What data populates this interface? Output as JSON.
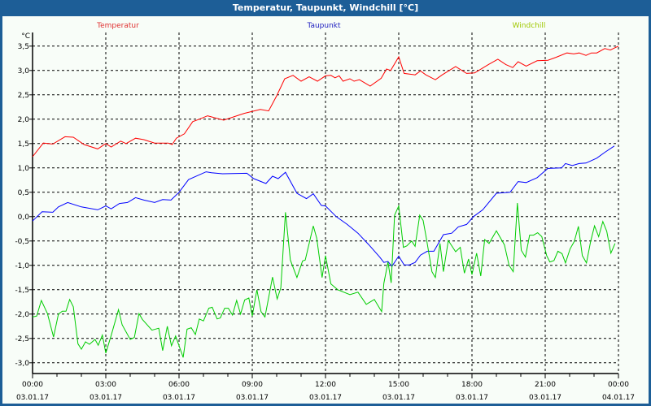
{
  "window": {
    "title": "Temperatur, Taupunkt, Windchill [°C]"
  },
  "chart_data": {
    "type": "line",
    "title": "Temperatur, Taupunkt, Windchill [°C]",
    "ylabel": "°C",
    "xlabel": "",
    "ylim": [
      -3.22,
      3.78
    ],
    "xlim": [
      0,
      24
    ],
    "grid": true,
    "legend_placement": "top",
    "y_ticks": [
      {
        "value": 3.5,
        "label": "3,5"
      },
      {
        "value": 3.0,
        "label": "3,0"
      },
      {
        "value": 2.5,
        "label": "2,5"
      },
      {
        "value": 2.0,
        "label": "2,0"
      },
      {
        "value": 1.5,
        "label": "1,5"
      },
      {
        "value": 1.0,
        "label": "1,0"
      },
      {
        "value": 0.5,
        "label": "0,5"
      },
      {
        "value": 0.0,
        "label": "0,0"
      },
      {
        "value": -0.5,
        "label": "-0,5"
      },
      {
        "value": -1.0,
        "label": "-1,0"
      },
      {
        "value": -1.5,
        "label": "-1,5"
      },
      {
        "value": -2.0,
        "label": "-2,0"
      },
      {
        "value": -2.5,
        "label": "-2,5"
      },
      {
        "value": -3.0,
        "label": "-3,0"
      }
    ],
    "x_ticks": [
      {
        "value": 0,
        "time": "00:00",
        "date": "03.01.17"
      },
      {
        "value": 3,
        "time": "03:00",
        "date": "03.01.17"
      },
      {
        "value": 6,
        "time": "06:00",
        "date": "03.01.17"
      },
      {
        "value": 9,
        "time": "09:00",
        "date": "03.01.17"
      },
      {
        "value": 12,
        "time": "12:00",
        "date": "03.01.17"
      },
      {
        "value": 15,
        "time": "15:00",
        "date": "03.01.17"
      },
      {
        "value": 18,
        "time": "18:00",
        "date": "03.01.17"
      },
      {
        "value": 21,
        "time": "21:00",
        "date": "03.01.17"
      },
      {
        "value": 24,
        "time": "00:00",
        "date": "04.01.17"
      }
    ],
    "series": [
      {
        "name": "Temperatur",
        "color": "#ff0000",
        "legend_color": "#e03030",
        "points": [
          [
            0,
            1.23
          ],
          [
            0.44,
            1.51
          ],
          [
            0.83,
            1.49
          ],
          [
            1.33,
            1.64
          ],
          [
            1.67,
            1.63
          ],
          [
            2.11,
            1.48
          ],
          [
            2.67,
            1.39
          ],
          [
            3,
            1.5
          ],
          [
            3.22,
            1.43
          ],
          [
            3.61,
            1.55
          ],
          [
            3.83,
            1.5
          ],
          [
            4.22,
            1.61
          ],
          [
            4.56,
            1.58
          ],
          [
            5,
            1.51
          ],
          [
            5.56,
            1.51
          ],
          [
            5.72,
            1.48
          ],
          [
            5.89,
            1.61
          ],
          [
            6.22,
            1.7
          ],
          [
            6.56,
            1.95
          ],
          [
            6.83,
            2.0
          ],
          [
            7.17,
            2.07
          ],
          [
            7.83,
            1.98
          ],
          [
            8.67,
            2.12
          ],
          [
            9.33,
            2.2
          ],
          [
            9.67,
            2.17
          ],
          [
            10,
            2.48
          ],
          [
            10.33,
            2.83
          ],
          [
            10.67,
            2.9
          ],
          [
            11,
            2.78
          ],
          [
            11.33,
            2.87
          ],
          [
            11.67,
            2.78
          ],
          [
            12,
            2.89
          ],
          [
            12.22,
            2.9
          ],
          [
            12.39,
            2.85
          ],
          [
            12.56,
            2.89
          ],
          [
            12.72,
            2.78
          ],
          [
            13,
            2.83
          ],
          [
            13.17,
            2.78
          ],
          [
            13.39,
            2.81
          ],
          [
            13.83,
            2.68
          ],
          [
            14.28,
            2.84
          ],
          [
            14.5,
            3.03
          ],
          [
            14.67,
            3.0
          ],
          [
            15,
            3.28
          ],
          [
            15.22,
            2.94
          ],
          [
            15.67,
            2.91
          ],
          [
            15.89,
            2.99
          ],
          [
            16.11,
            2.91
          ],
          [
            16.5,
            2.81
          ],
          [
            16.78,
            2.91
          ],
          [
            17.33,
            3.08
          ],
          [
            17.78,
            2.94
          ],
          [
            18.11,
            2.95
          ],
          [
            18.67,
            3.12
          ],
          [
            19.06,
            3.23
          ],
          [
            19.39,
            3.12
          ],
          [
            19.67,
            3.06
          ],
          [
            19.89,
            3.18
          ],
          [
            20.22,
            3.09
          ],
          [
            20.67,
            3.2
          ],
          [
            21.11,
            3.21
          ],
          [
            21.44,
            3.27
          ],
          [
            21.89,
            3.36
          ],
          [
            22.17,
            3.34
          ],
          [
            22.39,
            3.36
          ],
          [
            22.67,
            3.31
          ],
          [
            22.89,
            3.36
          ],
          [
            23.11,
            3.36
          ],
          [
            23.44,
            3.45
          ],
          [
            23.67,
            3.42
          ],
          [
            23.83,
            3.46
          ],
          [
            24,
            3.5
          ]
        ]
      },
      {
        "name": "Taupunkt",
        "color": "#0000ff",
        "legend_color": "#2020c0",
        "points": [
          [
            0,
            -0.09
          ],
          [
            0.39,
            0.1
          ],
          [
            0.83,
            0.09
          ],
          [
            1.06,
            0.2
          ],
          [
            1.44,
            0.29
          ],
          [
            2,
            0.2
          ],
          [
            2.67,
            0.14
          ],
          [
            3,
            0.22
          ],
          [
            3.22,
            0.16
          ],
          [
            3.56,
            0.27
          ],
          [
            3.89,
            0.29
          ],
          [
            4.22,
            0.39
          ],
          [
            4.56,
            0.34
          ],
          [
            5,
            0.29
          ],
          [
            5.33,
            0.35
          ],
          [
            5.67,
            0.34
          ],
          [
            6,
            0.5
          ],
          [
            6.39,
            0.76
          ],
          [
            7.11,
            0.92
          ],
          [
            7.33,
            0.9
          ],
          [
            7.78,
            0.88
          ],
          [
            8.78,
            0.89
          ],
          [
            9.06,
            0.78
          ],
          [
            9.56,
            0.68
          ],
          [
            9.83,
            0.83
          ],
          [
            10.06,
            0.78
          ],
          [
            10.36,
            0.91
          ],
          [
            10.83,
            0.48
          ],
          [
            11.22,
            0.37
          ],
          [
            11.5,
            0.47
          ],
          [
            11.83,
            0.23
          ],
          [
            12,
            0.22
          ],
          [
            12.44,
            0.0
          ],
          [
            12.89,
            -0.16
          ],
          [
            13.33,
            -0.34
          ],
          [
            13.78,
            -0.58
          ],
          [
            14.22,
            -0.83
          ],
          [
            14.39,
            -0.94
          ],
          [
            14.56,
            -0.92
          ],
          [
            14.72,
            -1.02
          ],
          [
            15,
            -0.81
          ],
          [
            15.22,
            -0.99
          ],
          [
            15.44,
            -0.99
          ],
          [
            15.67,
            -0.94
          ],
          [
            15.89,
            -0.79
          ],
          [
            16.17,
            -0.71
          ],
          [
            16.44,
            -0.71
          ],
          [
            16.83,
            -0.37
          ],
          [
            17.17,
            -0.34
          ],
          [
            17.44,
            -0.21
          ],
          [
            17.78,
            -0.16
          ],
          [
            18.06,
            0.0
          ],
          [
            18.44,
            0.14
          ],
          [
            19,
            0.48
          ],
          [
            19.56,
            0.5
          ],
          [
            19.89,
            0.72
          ],
          [
            20.22,
            0.7
          ],
          [
            20.67,
            0.8
          ],
          [
            21.11,
            0.99
          ],
          [
            21.67,
            1.0
          ],
          [
            21.83,
            1.09
          ],
          [
            22.11,
            1.05
          ],
          [
            22.39,
            1.09
          ],
          [
            22.67,
            1.1
          ],
          [
            23.11,
            1.2
          ],
          [
            23.44,
            1.32
          ],
          [
            23.83,
            1.45
          ]
        ]
      },
      {
        "name": "Windchill",
        "color": "#00cc00",
        "legend_color": "#a0c800",
        "points": [
          [
            0,
            -2.06
          ],
          [
            0.17,
            -2.04
          ],
          [
            0.36,
            -1.72
          ],
          [
            0.61,
            -1.99
          ],
          [
            0.86,
            -2.47
          ],
          [
            1.06,
            -2.0
          ],
          [
            1.22,
            -1.94
          ],
          [
            1.37,
            -1.94
          ],
          [
            1.52,
            -1.7
          ],
          [
            1.67,
            -1.85
          ],
          [
            1.86,
            -2.61
          ],
          [
            2,
            -2.72
          ],
          [
            2.17,
            -2.57
          ],
          [
            2.33,
            -2.62
          ],
          [
            2.56,
            -2.52
          ],
          [
            2.69,
            -2.64
          ],
          [
            2.86,
            -2.43
          ],
          [
            3,
            -2.8
          ],
          [
            3.22,
            -2.44
          ],
          [
            3.52,
            -1.91
          ],
          [
            3.67,
            -2.22
          ],
          [
            4,
            -2.52
          ],
          [
            4.17,
            -2.48
          ],
          [
            4.36,
            -1.99
          ],
          [
            4.5,
            -2.11
          ],
          [
            4.89,
            -2.33
          ],
          [
            5.17,
            -2.29
          ],
          [
            5.33,
            -2.75
          ],
          [
            5.52,
            -2.25
          ],
          [
            5.69,
            -2.65
          ],
          [
            5.86,
            -2.45
          ],
          [
            6.17,
            -2.89
          ],
          [
            6.33,
            -2.31
          ],
          [
            6.5,
            -2.28
          ],
          [
            6.67,
            -2.42
          ],
          [
            6.83,
            -2.1
          ],
          [
            7,
            -2.14
          ],
          [
            7.22,
            -1.88
          ],
          [
            7.36,
            -1.86
          ],
          [
            7.56,
            -2.1
          ],
          [
            7.69,
            -2.08
          ],
          [
            7.87,
            -1.88
          ],
          [
            8.02,
            -1.88
          ],
          [
            8.19,
            -2.02
          ],
          [
            8.36,
            -1.72
          ],
          [
            8.52,
            -2.0
          ],
          [
            8.69,
            -1.71
          ],
          [
            8.86,
            -1.67
          ],
          [
            9,
            -2.04
          ],
          [
            9.19,
            -1.5
          ],
          [
            9.36,
            -1.95
          ],
          [
            9.52,
            -2.06
          ],
          [
            9.83,
            -1.24
          ],
          [
            10.02,
            -1.69
          ],
          [
            10.17,
            -1.46
          ],
          [
            10.36,
            0.09
          ],
          [
            10.56,
            -0.89
          ],
          [
            10.83,
            -1.25
          ],
          [
            11.06,
            -0.91
          ],
          [
            11.17,
            -0.89
          ],
          [
            11.5,
            -0.19
          ],
          [
            11.64,
            -0.44
          ],
          [
            11.86,
            -1.25
          ],
          [
            12,
            -0.8
          ],
          [
            12.22,
            -1.38
          ],
          [
            12.5,
            -1.5
          ],
          [
            13,
            -1.6
          ],
          [
            13.33,
            -1.55
          ],
          [
            13.67,
            -1.8
          ],
          [
            14,
            -1.7
          ],
          [
            14.3,
            -1.95
          ],
          [
            14.39,
            -1.37
          ],
          [
            14.56,
            -0.93
          ],
          [
            14.69,
            -1.36
          ],
          [
            14.83,
            0.03
          ],
          [
            15,
            0.22
          ],
          [
            15.19,
            -0.63
          ],
          [
            15.33,
            -0.6
          ],
          [
            15.53,
            -0.5
          ],
          [
            15.67,
            -0.61
          ],
          [
            15.86,
            0.03
          ],
          [
            16,
            -0.08
          ],
          [
            16.13,
            -0.44
          ],
          [
            16.36,
            -1.13
          ],
          [
            16.5,
            -1.25
          ],
          [
            16.69,
            -0.55
          ],
          [
            16.83,
            -1.13
          ],
          [
            17.03,
            -0.49
          ],
          [
            17.33,
            -0.72
          ],
          [
            17.52,
            -0.63
          ],
          [
            17.69,
            -1.16
          ],
          [
            17.86,
            -0.87
          ],
          [
            18,
            -1.19
          ],
          [
            18.19,
            -0.75
          ],
          [
            18.36,
            -1.22
          ],
          [
            18.52,
            -0.47
          ],
          [
            18.7,
            -0.55
          ],
          [
            19,
            -0.29
          ],
          [
            19.33,
            -0.58
          ],
          [
            19.52,
            -1.0
          ],
          [
            19.69,
            -1.13
          ],
          [
            19.86,
            0.28
          ],
          [
            20.02,
            -0.69
          ],
          [
            20.19,
            -0.83
          ],
          [
            20.36,
            -0.38
          ],
          [
            20.52,
            -0.38
          ],
          [
            20.69,
            -0.33
          ],
          [
            20.86,
            -0.41
          ],
          [
            21.06,
            -0.8
          ],
          [
            21.19,
            -0.93
          ],
          [
            21.36,
            -0.9
          ],
          [
            21.52,
            -0.71
          ],
          [
            21.69,
            -0.76
          ],
          [
            21.83,
            -0.95
          ],
          [
            22.02,
            -0.66
          ],
          [
            22.19,
            -0.51
          ],
          [
            22.36,
            -0.2
          ],
          [
            22.52,
            -0.8
          ],
          [
            22.69,
            -0.95
          ],
          [
            22.86,
            -0.51
          ],
          [
            23.02,
            -0.19
          ],
          [
            23.19,
            -0.41
          ],
          [
            23.36,
            -0.1
          ],
          [
            23.52,
            -0.3
          ],
          [
            23.69,
            -0.75
          ],
          [
            23.86,
            -0.55
          ]
        ]
      }
    ]
  }
}
